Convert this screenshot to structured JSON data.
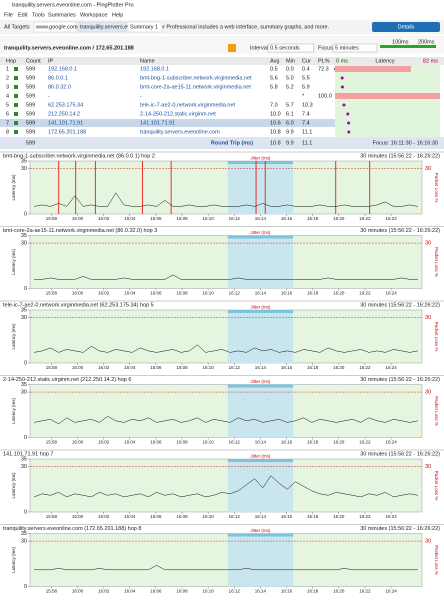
{
  "window": {
    "title": "tranquility.servers.eveonline.com - PingPlotter Pro"
  },
  "menu": [
    "File",
    "Edit",
    "Tools",
    "Summaries",
    "Workspace",
    "Help"
  ],
  "tabs": [
    "All Targets",
    "www.google.com",
    "tranquility.servers.eveonline.com",
    "Summary 1"
  ],
  "banner": {
    "text": "PingPlotter Professional includes a web interface, summary graphs, and more.",
    "button": "Details"
  },
  "target": {
    "name": "tranquility.servers.eveonline.com / 172.65.201.188",
    "interval_label": "Interval",
    "interval": "0.5 seconds",
    "focus_label": "Focus",
    "focus": "5 minutes",
    "scale": [
      "100ms",
      "200ms"
    ]
  },
  "table": {
    "headers": [
      "Hop",
      "Count",
      "IP",
      "Name",
      "Avg",
      "Min",
      "Cur",
      "PL%"
    ],
    "latency_header": "Latency",
    "latency_min": "0 ms",
    "latency_max": "82 ms",
    "rows": [
      [
        "1",
        "599",
        "192.168.0.1",
        "192.168.0.1",
        "0.5",
        "0.0",
        "0.4",
        "72.3"
      ],
      [
        "2",
        "599",
        "86.0.0.1",
        "bmt-bng-1-subscriber.network.virginmedia.net",
        "5.6",
        "5.0",
        "5.5"
      ],
      [
        "3",
        "599",
        "86.0.32.0",
        "bmt-core-2a-ae15-11.network.virginmedia.net",
        "5.8",
        "5.2",
        "5.9"
      ],
      [
        "4",
        "599",
        "-",
        "-",
        "",
        "",
        "*",
        "100.0"
      ],
      [
        "5",
        "599",
        "62.253.175.34",
        "tele-ic-7-ae2-0.network.virginmedia.net",
        "7.0",
        "5.7",
        "10.3"
      ],
      [
        "6",
        "599",
        "212.250.14.2",
        "2-14-250-212.static.virginm.net",
        "10.0",
        "6.1",
        "7.4"
      ],
      [
        "7",
        "599",
        "141.101.71.91",
        "141.101.71.91",
        "10.6",
        "6.0",
        "7.4"
      ],
      [
        "8",
        "599",
        "172.65.201.188",
        "tranquility.servers.eveonline.com",
        "10.8",
        "9.9",
        "11.1"
      ]
    ],
    "footer": {
      "count": "599",
      "label": "Round Trip (ms)",
      "avg": "10.8",
      "min": "9.9",
      "cur": "11.1",
      "focus": "Focus: 16:11:30 - 16:16:30"
    }
  },
  "graphs": {
    "range": "30 minutes (15:56:22 - 16:26:22)",
    "jitter": "Jitter (ms)",
    "y_label": "Latency (ms)",
    "y2_label": "Packet Loss %",
    "xlim": [
      0,
      30
    ],
    "ylim": [
      0,
      35
    ],
    "yticks": [
      0,
      30,
      35
    ],
    "y2ticks": [
      30
    ],
    "focus_span": [
      15.133,
      20.133
    ],
    "xticks": [
      {
        "value": 1.633,
        "label": "15:58"
      },
      {
        "value": 3.633,
        "label": "16:00"
      },
      {
        "value": 5.633,
        "label": "16:02"
      },
      {
        "value": 7.633,
        "label": "16:04"
      },
      {
        "value": 9.633,
        "label": "16:06"
      },
      {
        "value": 11.633,
        "label": "16:08"
      },
      {
        "value": 13.633,
        "label": "16:10"
      },
      {
        "value": 15.633,
        "label": "16:12"
      },
      {
        "value": 17.633,
        "label": "16:14"
      },
      {
        "value": 19.633,
        "label": "16:16"
      },
      {
        "value": 21.633,
        "label": "16:18"
      },
      {
        "value": 23.633,
        "label": "16:20"
      },
      {
        "value": 25.633,
        "label": "16:22"
      },
      {
        "value": 27.633,
        "label": "16:24"
      }
    ],
    "panels": [
      {
        "title": "bmt-bng-1-subscriber.network.virginmedia.net (86.0.0.1) hop 2",
        "loss_at": [
          2.2,
          3.5,
          5.0,
          8.6,
          10.8,
          17.3,
          18.0,
          23.4,
          26.0
        ],
        "values": [
          5,
          6,
          5,
          7,
          5,
          12,
          5,
          6,
          5,
          5,
          14,
          6,
          5,
          5,
          6,
          5,
          9,
          5,
          5,
          6,
          5,
          5,
          6,
          5,
          5,
          5,
          6,
          5,
          7,
          5,
          5,
          6,
          5,
          5,
          5,
          6,
          5,
          5,
          6,
          5,
          5,
          5,
          6,
          8,
          5,
          5,
          6,
          5
        ]
      },
      {
        "title": "bmt-core-2a-ae15-11.network.virginmedia.net (86.0.32.0) hop 3",
        "values": [
          6,
          6,
          7,
          6,
          6,
          6,
          8,
          6,
          6,
          6,
          6,
          7,
          6,
          6,
          6,
          6,
          6,
          9,
          6,
          6,
          6,
          6,
          6,
          6,
          6,
          7,
          6,
          6,
          6,
          6,
          6,
          6,
          6,
          6,
          6,
          6,
          7,
          6,
          6,
          6,
          6,
          6,
          6,
          6,
          6,
          7,
          6,
          6
        ]
      },
      {
        "title": "tele-ic-7-ae2-0.network.virginmedia.net (62.253.175.34) hop 5",
        "values": [
          7,
          8,
          10,
          7,
          9,
          8,
          7,
          11,
          8,
          7,
          9,
          8,
          7,
          10,
          8,
          7,
          8,
          9,
          7,
          8,
          12,
          7,
          8,
          9,
          7,
          8,
          7,
          10,
          8,
          9,
          7,
          8,
          7,
          9,
          8,
          7,
          10,
          8,
          7,
          8,
          9,
          7,
          8,
          7,
          9,
          8,
          7,
          8
        ]
      },
      {
        "title": "2-14-250-212.static.virginm.net (212.250.14.2) hop 6",
        "values": [
          10,
          11,
          12,
          9,
          13,
          10,
          11,
          12,
          10,
          14,
          11,
          10,
          12,
          11,
          13,
          10,
          11,
          12,
          10,
          11,
          13,
          10,
          12,
          11,
          10,
          13,
          11,
          12,
          10,
          11,
          12,
          10,
          11,
          13,
          10,
          12,
          11,
          10,
          11,
          12,
          10,
          13,
          11,
          10,
          12,
          11,
          10,
          11
        ]
      },
      {
        "title": "141.101.71.91 hop 7",
        "values": [
          10,
          12,
          11,
          13,
          10,
          12,
          11,
          10,
          13,
          11,
          12,
          10,
          11,
          12,
          10,
          13,
          11,
          12,
          10,
          11,
          12,
          10,
          11,
          13,
          12,
          14,
          18,
          22,
          16,
          24,
          19,
          15,
          20,
          17,
          14,
          12,
          11,
          13,
          12,
          11,
          10,
          12,
          11,
          13,
          10,
          11,
          12,
          11
        ]
      },
      {
        "title": "tranquility.servers.eveonline.com (172.65.201.188) hop 8",
        "values": [
          11,
          11,
          11,
          12,
          11,
          11,
          11,
          11,
          12,
          11,
          11,
          11,
          11,
          11,
          11,
          14,
          11,
          11,
          11,
          11,
          11,
          11,
          11,
          11,
          11,
          11,
          12,
          11,
          11,
          11,
          11,
          11,
          11,
          11,
          11,
          11,
          11,
          11,
          12,
          11,
          11,
          11,
          11,
          11,
          11,
          11,
          11,
          11
        ]
      }
    ]
  }
}
